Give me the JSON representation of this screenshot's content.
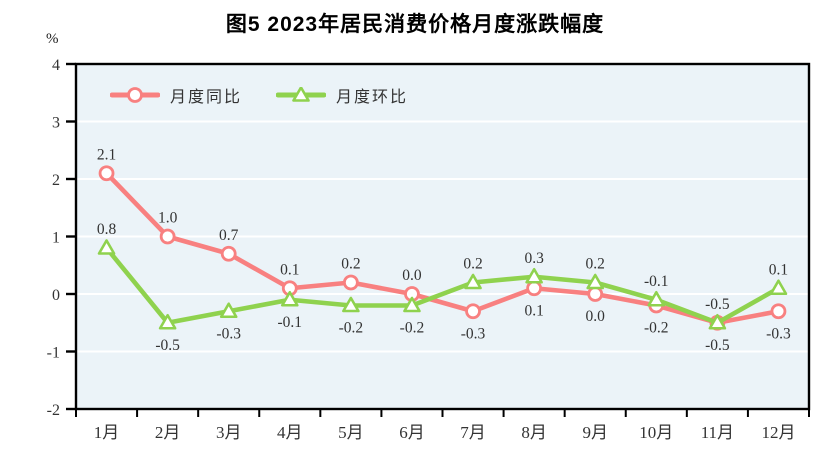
{
  "figure": {
    "title": "图5  2023年居民消费价格月度涨跌幅度",
    "unit": "%"
  },
  "chart_data": {
    "type": "line",
    "title": "图5  2023年居民消费价格月度涨跌幅度",
    "unit": "%",
    "categories": [
      "1月",
      "2月",
      "3月",
      "4月",
      "5月",
      "6月",
      "7月",
      "8月",
      "9月",
      "10月",
      "11月",
      "12月"
    ],
    "series": [
      {
        "name": "月度同比",
        "marker": "circle",
        "color": "#f88080",
        "values": [
          2.1,
          1.0,
          0.7,
          0.1,
          0.2,
          0.0,
          -0.3,
          0.1,
          0.0,
          -0.2,
          -0.5,
          -0.3
        ],
        "label_positions": [
          "above",
          "above",
          "above",
          "above",
          "above",
          "above",
          "below",
          "below",
          "below",
          "below",
          "below",
          "below"
        ]
      },
      {
        "name": "月度环比",
        "marker": "triangle",
        "color": "#8fd24e",
        "values": [
          0.8,
          -0.5,
          -0.3,
          -0.1,
          -0.2,
          -0.2,
          0.2,
          0.3,
          0.2,
          -0.1,
          -0.5,
          0.1
        ],
        "label_positions": [
          "above",
          "below",
          "below",
          "below",
          "below",
          "below",
          "above",
          "above",
          "above",
          "above",
          "above",
          "above"
        ]
      }
    ],
    "ylim": [
      -2,
      4
    ],
    "yticks": [
      4,
      3,
      2,
      1,
      0,
      -1,
      -2
    ],
    "grid": true,
    "legend_position": "top-left",
    "plot_bg_color": "#ebf3f8",
    "gridline_color": "#ffffff",
    "axis_color": "#000000",
    "text_color": "#333333"
  }
}
